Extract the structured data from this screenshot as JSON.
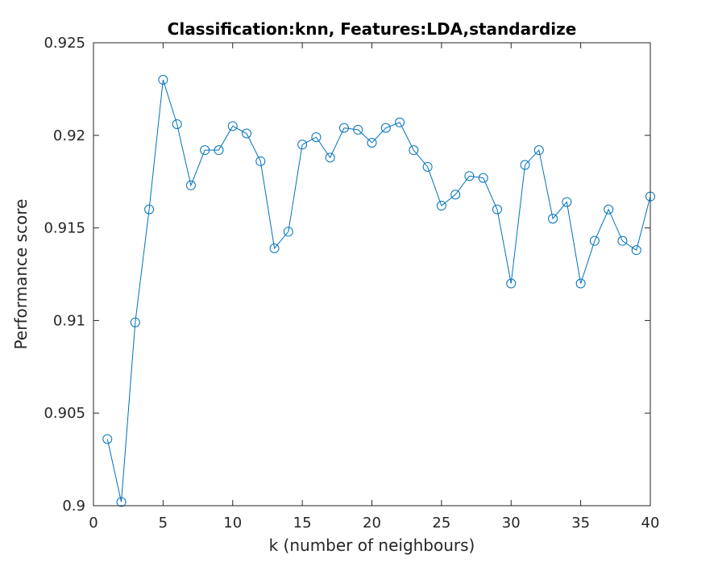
{
  "chart_data": {
    "type": "line",
    "title": "Classification:knn, Features:LDA,standardize",
    "xlabel": "k (number of neighbours)",
    "ylabel": "Performance score",
    "xlim": [
      0,
      40
    ],
    "ylim": [
      0.9,
      0.925
    ],
    "xticks": [
      "0",
      "5",
      "10",
      "15",
      "20",
      "25",
      "30",
      "35",
      "40"
    ],
    "yticks": [
      "0.9",
      "0.905",
      "0.91",
      "0.915",
      "0.92",
      "0.925"
    ],
    "grid": false,
    "marker": "circle",
    "line_color": "#0072bd",
    "series": [
      {
        "x": [
          1,
          2,
          3,
          4,
          5,
          6,
          7,
          8,
          9,
          10,
          11,
          12,
          13,
          14,
          15,
          16,
          17,
          18,
          19,
          20,
          21,
          22,
          23,
          24,
          25,
          26,
          27,
          28,
          29,
          30,
          31,
          32,
          33,
          34,
          35,
          36,
          37,
          38,
          39,
          40
        ],
        "values": [
          0.9036,
          0.9002,
          0.9099,
          0.916,
          0.923,
          0.9206,
          0.9173,
          0.9192,
          0.9192,
          0.9205,
          0.9201,
          0.9186,
          0.9139,
          0.9148,
          0.9195,
          0.9199,
          0.9188,
          0.9204,
          0.9203,
          0.9196,
          0.9204,
          0.9207,
          0.9192,
          0.9183,
          0.9162,
          0.9168,
          0.9178,
          0.9177,
          0.916,
          0.912,
          0.9184,
          0.9192,
          0.9155,
          0.9164,
          0.912,
          0.9143,
          0.916,
          0.9143,
          0.9138,
          0.9167
        ]
      }
    ]
  }
}
